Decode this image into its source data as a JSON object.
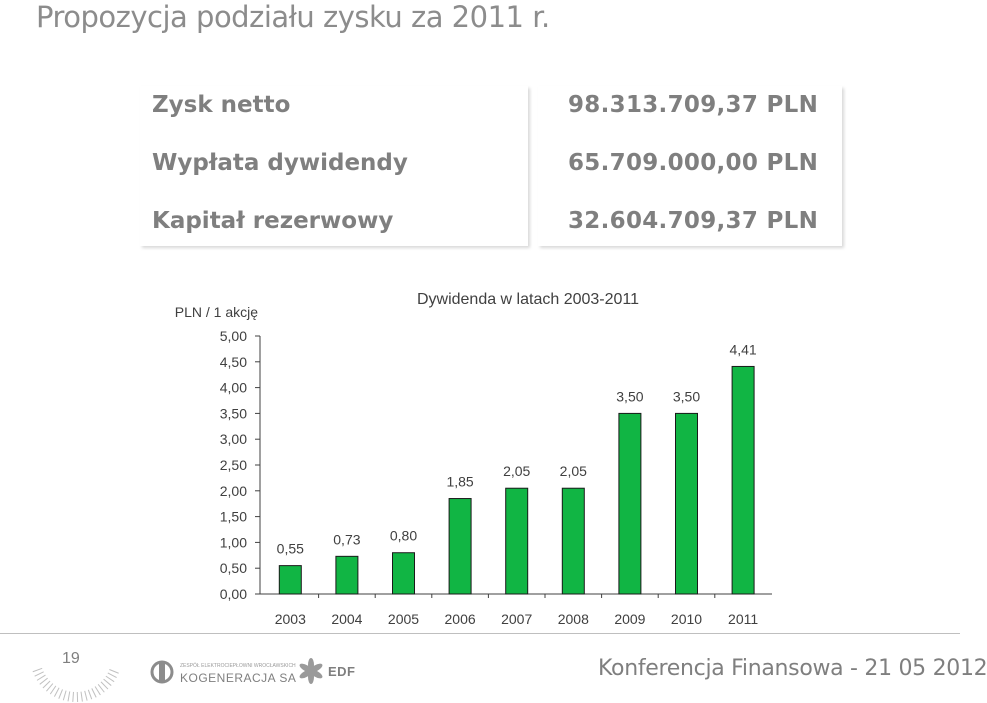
{
  "slide": {
    "title": "Propozycja podziału zysku za 2011 r."
  },
  "summary": {
    "rows": [
      {
        "label": "Zysk netto",
        "value": "98.313.709,37 PLN"
      },
      {
        "label": "Wypłata dywidendy",
        "value": "65.709.000,00 PLN"
      },
      {
        "label": "Kapitał rezerwowy",
        "value": "32.604.709,37 PLN"
      }
    ]
  },
  "chart_data": {
    "type": "bar",
    "title": "Dywidenda w latach 2003-2011",
    "ylabel": "PLN / 1 akcję",
    "categories": [
      "2003",
      "2004",
      "2005",
      "2006",
      "2007",
      "2008",
      "2009",
      "2010",
      "2011"
    ],
    "values": [
      0.55,
      0.73,
      0.8,
      1.85,
      2.05,
      2.05,
      3.5,
      3.5,
      4.41
    ],
    "data_labels": [
      "0,55",
      "0,73",
      "0,80",
      "1,85",
      "2,05",
      "2,05",
      "3,50",
      "3,50",
      "4,41"
    ],
    "ylim": [
      0,
      5
    ],
    "yticks": [
      "0,00",
      "0,50",
      "1,00",
      "1,50",
      "2,00",
      "2,50",
      "3,00",
      "3,50",
      "4,00",
      "4,50",
      "5,00"
    ],
    "grid": false,
    "bar_color": "#11b544"
  },
  "footer": {
    "page_number": "19",
    "conference": "Konferencja Finansowa - 21 05 2012",
    "logo1_small": "ZESPÓŁ ELEKTROCIEPŁOWNI WROCŁAWSKICH",
    "logo1_main": "KOGENERACJA SA",
    "logo2_text": "EDF",
    "logo1_icon": "kogeneracja-logo-icon",
    "logo2_icon": "edf-logo-icon"
  }
}
